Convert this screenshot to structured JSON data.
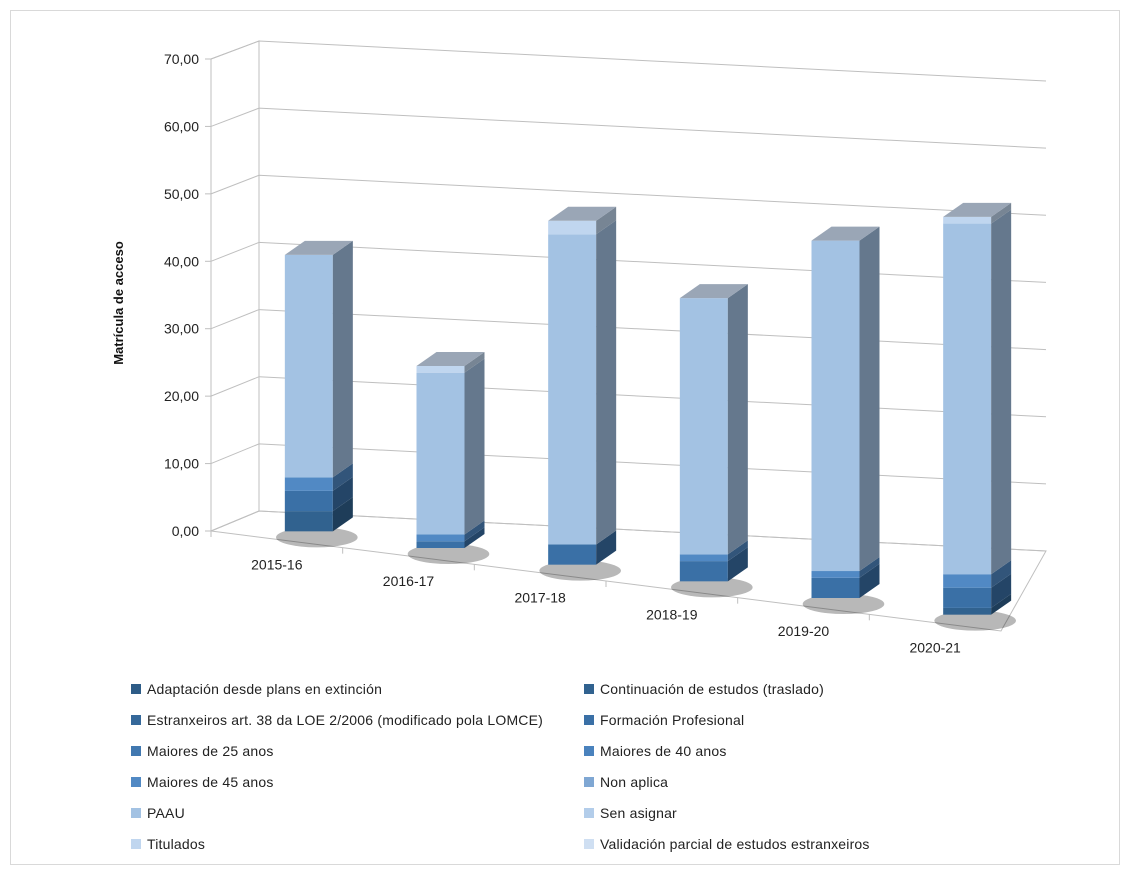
{
  "chart_data": {
    "type": "bar",
    "stacked": true,
    "three_d": true,
    "title": "",
    "xlabel": "",
    "ylabel": "Matrícula de acceso",
    "ylim": [
      0,
      70
    ],
    "yticks": [
      "0,00",
      "10,00",
      "20,00",
      "30,00",
      "40,00",
      "50,00",
      "60,00",
      "70,00"
    ],
    "grid": true,
    "legend_position": "bottom",
    "categories": [
      "2015-16",
      "2016-17",
      "2017-18",
      "2018-19",
      "2019-20",
      "2020-21"
    ],
    "series": [
      {
        "name": "Adaptación desde plans en extinción",
        "color": "#2e5c87",
        "values": [
          0,
          0,
          0,
          0,
          0,
          0
        ]
      },
      {
        "name": "Continuación de estudos (traslado)",
        "color": "#31628f",
        "values": [
          3,
          0,
          0,
          0,
          0,
          1
        ]
      },
      {
        "name": "Estranxeiros art. 38 da LOE 2/2006 (modificado pola LOMCE)",
        "color": "#35689a",
        "values": [
          0,
          0,
          0,
          0,
          0,
          0
        ]
      },
      {
        "name": "Formación Profesional",
        "color": "#3a70a6",
        "values": [
          3,
          1,
          3,
          3,
          3,
          3
        ]
      },
      {
        "name": "Maiores de 25 anos",
        "color": "#4178b0",
        "values": [
          0,
          0,
          0,
          0,
          0,
          0
        ]
      },
      {
        "name": "Maiores de 40 anos",
        "color": "#4a82bd",
        "values": [
          0,
          0,
          0,
          0,
          0,
          0
        ]
      },
      {
        "name": "Maiores de 45 anos",
        "color": "#5189c4",
        "values": [
          2,
          1,
          0,
          1,
          1,
          2
        ]
      },
      {
        "name": "Non aplica",
        "color": "#7fa7d3",
        "values": [
          0,
          0,
          0,
          0,
          0,
          0
        ]
      },
      {
        "name": "PAAU",
        "color": "#a3c2e3",
        "values": [
          33,
          24,
          46,
          38,
          49,
          52
        ]
      },
      {
        "name": "Sen asignar",
        "color": "#b3cdea",
        "values": [
          0,
          0,
          0,
          0,
          0,
          0
        ]
      },
      {
        "name": "Titulados",
        "color": "#c0d6ef",
        "values": [
          0,
          1,
          2,
          0,
          0,
          1
        ]
      },
      {
        "name": "Validación parcial de estudos estranxeiros",
        "color": "#cfdff2",
        "values": [
          0,
          0,
          0,
          0,
          0,
          0
        ]
      }
    ]
  }
}
